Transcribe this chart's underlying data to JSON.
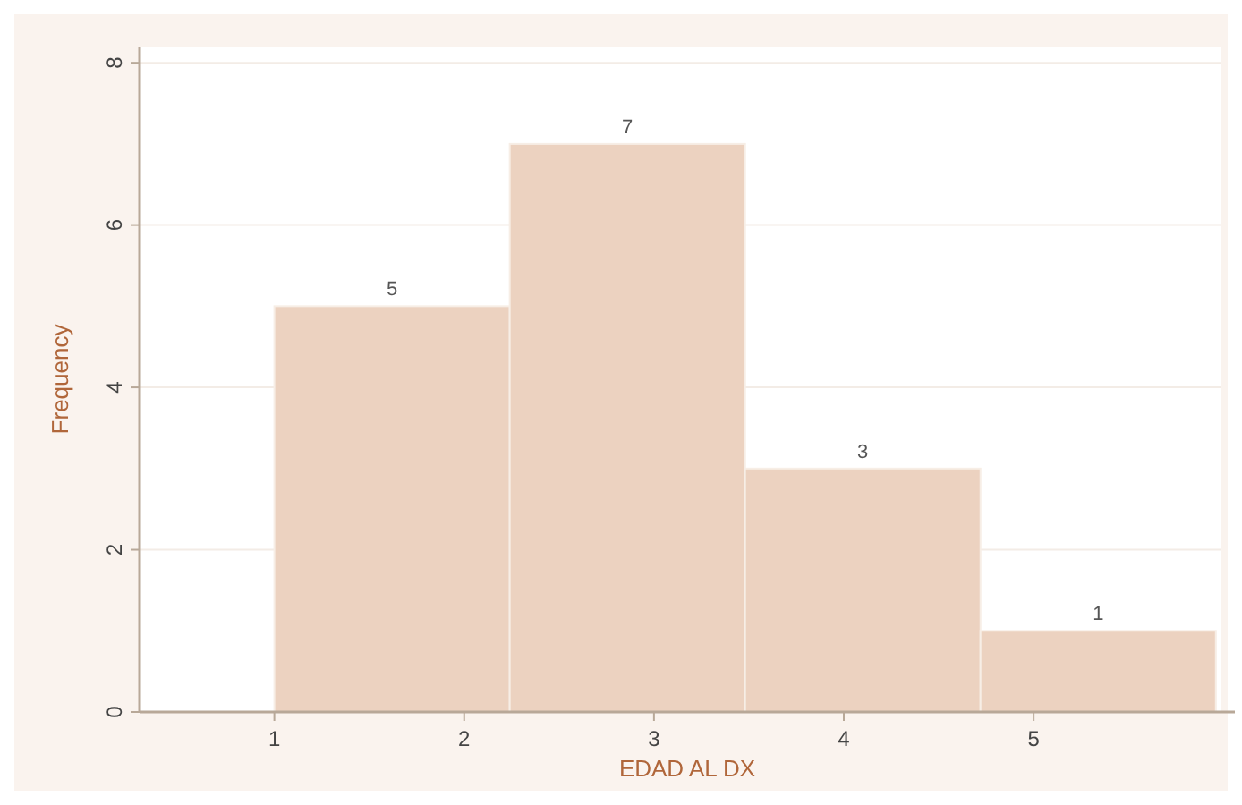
{
  "chart_data": {
    "type": "histogram",
    "xlabel": "EDAD AL DX",
    "ylabel": "Frequency",
    "bins": [
      1,
      2.24,
      3.48,
      4.72,
      5.96
    ],
    "values": [
      5,
      7,
      3,
      1
    ],
    "color": "#ecd2c0",
    "xlim": [
      0.29,
      6.06
    ],
    "ylim": [
      0,
      8.2
    ],
    "xticks": [
      1,
      2,
      3,
      4,
      5
    ],
    "yticks": [
      0,
      2,
      4,
      6,
      8
    ],
    "grid": "y",
    "data_labels": true
  }
}
